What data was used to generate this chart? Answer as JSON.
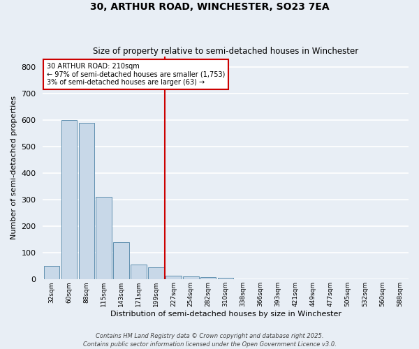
{
  "title": "30, ARTHUR ROAD, WINCHESTER, SO23 7EA",
  "subtitle": "Size of property relative to semi-detached houses in Winchester",
  "xlabel": "Distribution of semi-detached houses by size in Winchester",
  "ylabel": "Number of semi-detached properties",
  "categories": [
    "32sqm",
    "60sqm",
    "88sqm",
    "115sqm",
    "143sqm",
    "171sqm",
    "199sqm",
    "227sqm",
    "254sqm",
    "282sqm",
    "310sqm",
    "338sqm",
    "366sqm",
    "393sqm",
    "421sqm",
    "449sqm",
    "477sqm",
    "505sqm",
    "532sqm",
    "560sqm",
    "588sqm"
  ],
  "bar_values": [
    50,
    600,
    590,
    310,
    140,
    55,
    45,
    15,
    12,
    8,
    5,
    0,
    0,
    0,
    0,
    0,
    0,
    0,
    0,
    0,
    0
  ],
  "bar_color": "#c8d8e8",
  "bar_edge_color": "#6090b0",
  "ylim": [
    0,
    840
  ],
  "yticks": [
    0,
    100,
    200,
    300,
    400,
    500,
    600,
    700,
    800
  ],
  "vline_color": "#cc0000",
  "annotation_title": "30 ARTHUR ROAD: 210sqm",
  "annotation_line1": "← 97% of semi-detached houses are smaller (1,753)",
  "annotation_line2": "3% of semi-detached houses are larger (63) →",
  "annotation_box_color": "#ffffff",
  "annotation_box_edge": "#cc0000",
  "bg_color": "#e8eef5",
  "footer1": "Contains HM Land Registry data © Crown copyright and database right 2025.",
  "footer2": "Contains public sector information licensed under the Open Government Licence v3.0."
}
